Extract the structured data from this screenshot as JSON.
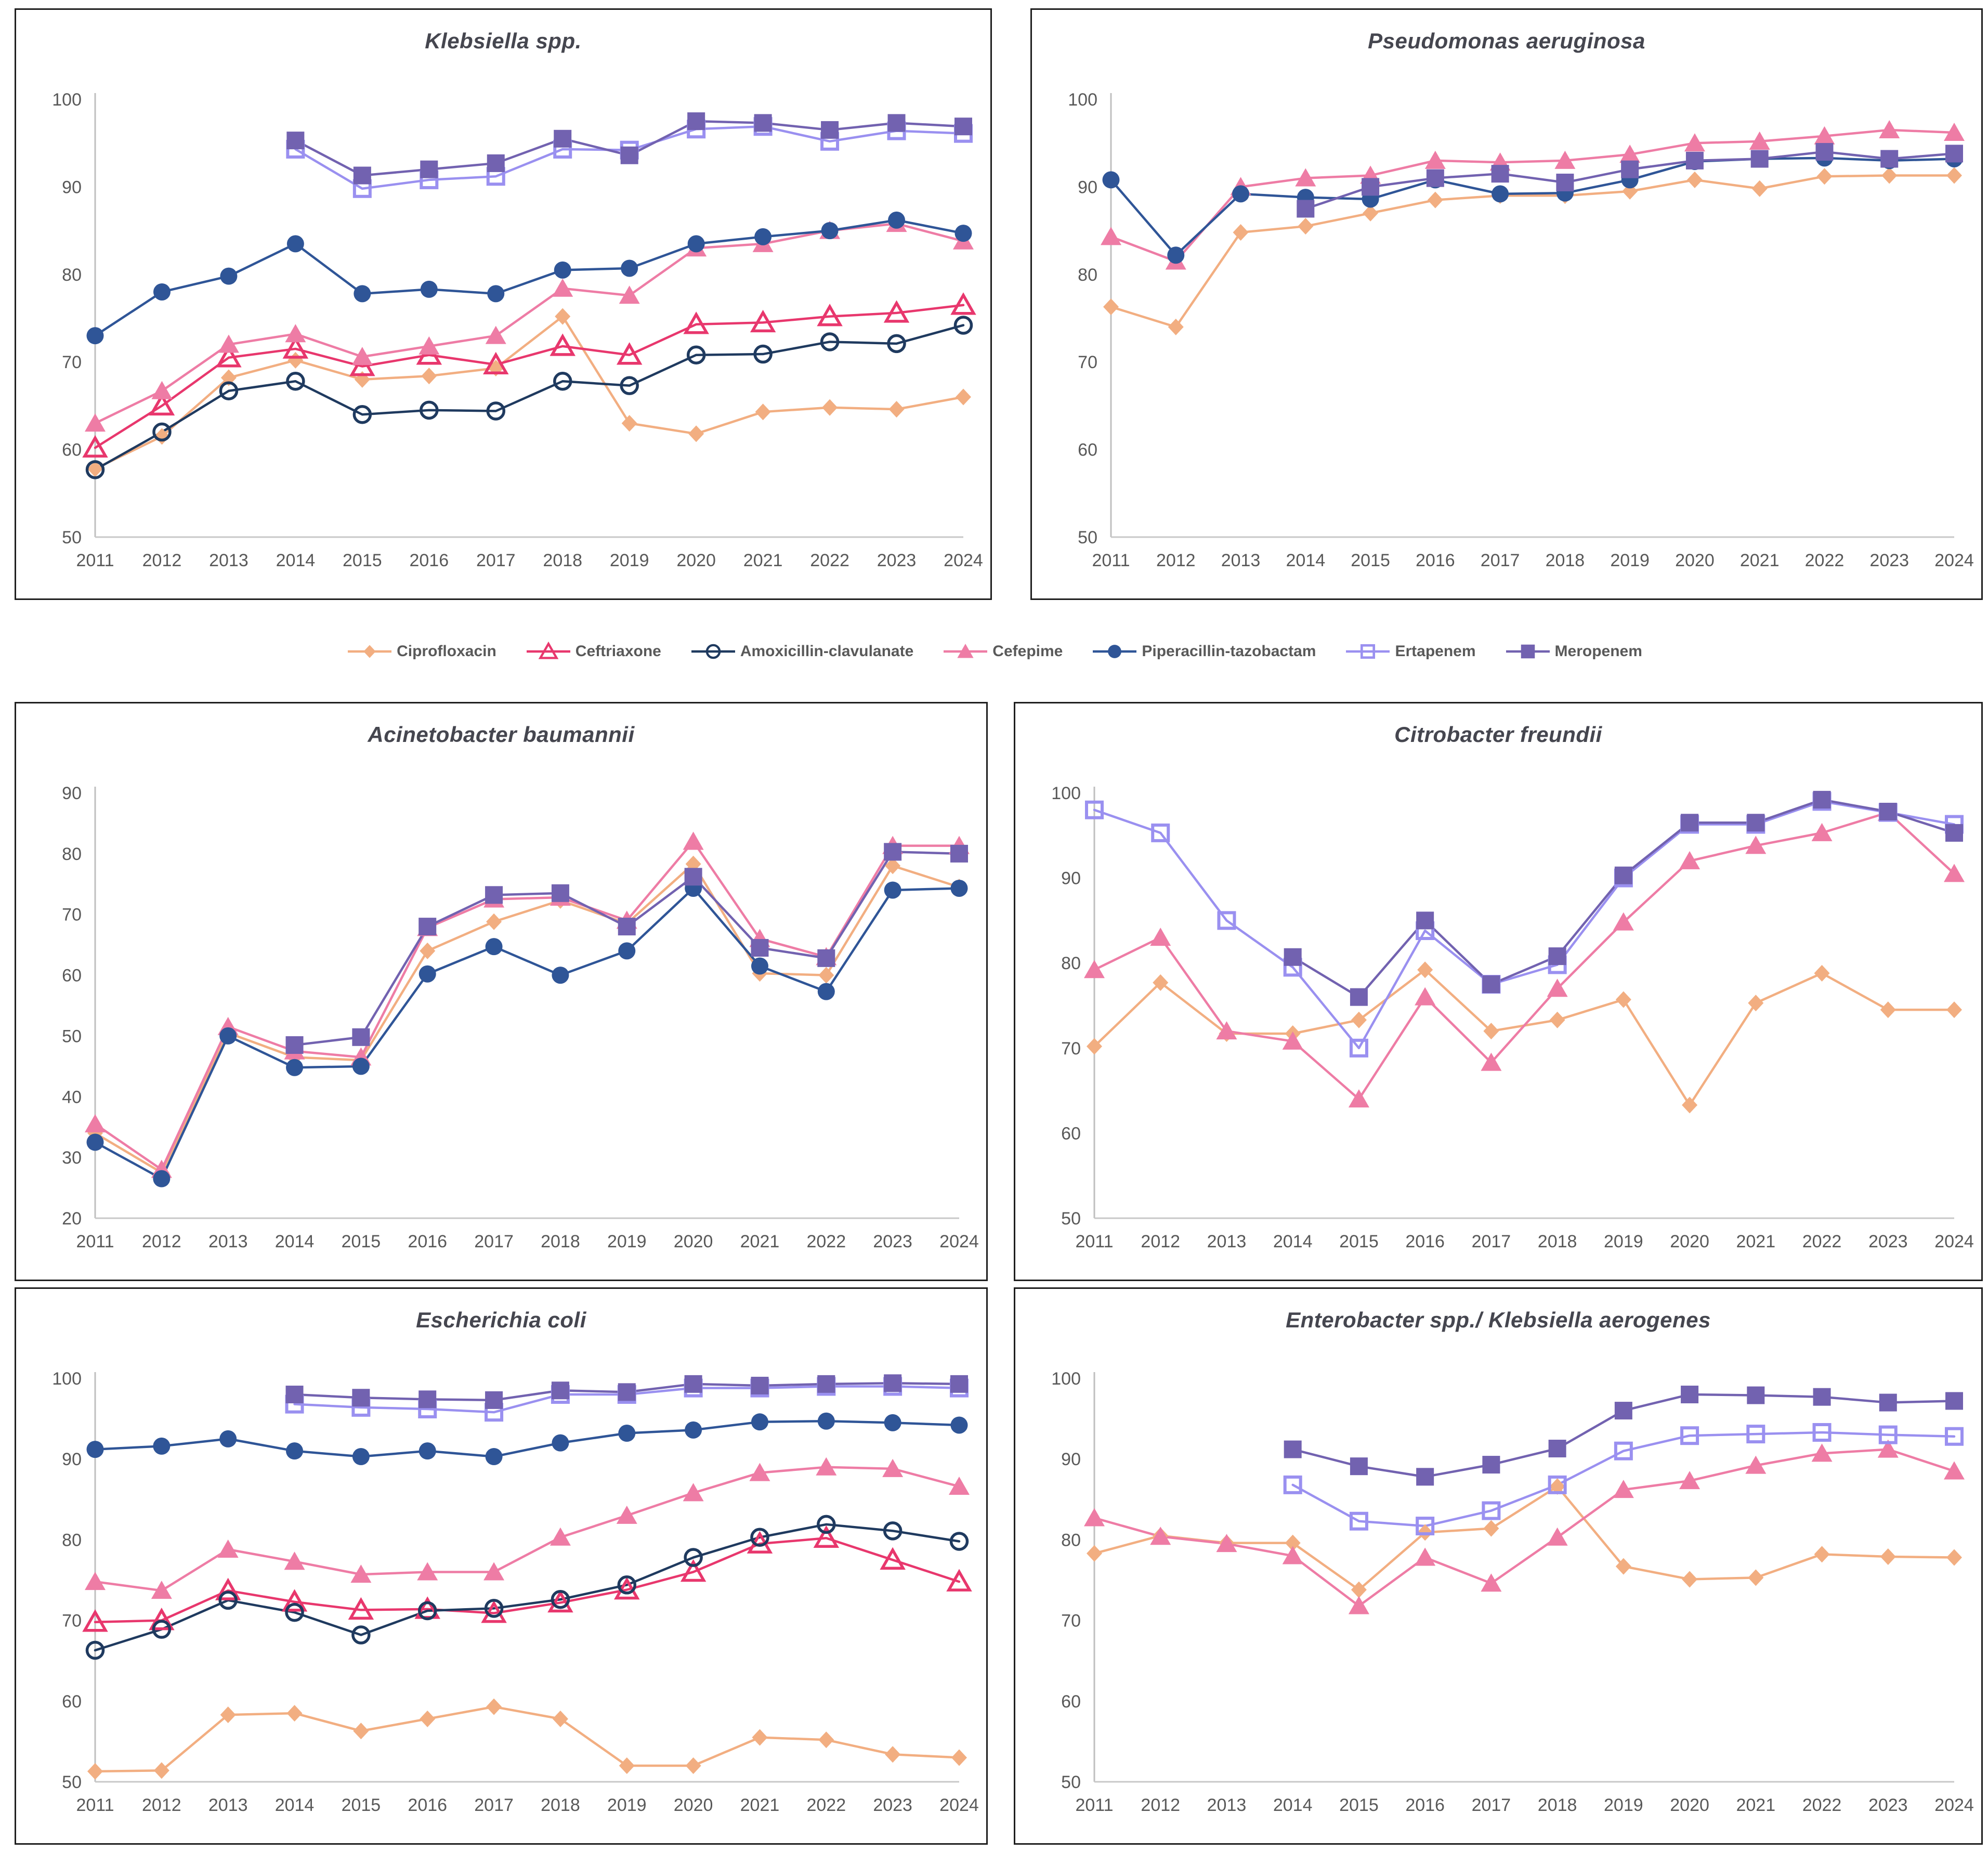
{
  "page": {
    "background": "#ffffff"
  },
  "years": [
    "2011",
    "2012",
    "2013",
    "2014",
    "2015",
    "2016",
    "2017",
    "2018",
    "2019",
    "2020",
    "2021",
    "2022",
    "2023",
    "2024"
  ],
  "series_styles": {
    "ciprofloxacin": {
      "color": "#F2AE81",
      "marker": "diamond-filled"
    },
    "ceftriaxone": {
      "color": "#E8376D",
      "marker": "triangle-open"
    },
    "amoxicillin_clavulanate": {
      "color": "#1F3A5F",
      "marker": "circle-open"
    },
    "cefepime": {
      "color": "#EE7CA5",
      "marker": "triangle-filled"
    },
    "piperacillin_tazobactam": {
      "color": "#2F5597",
      "marker": "circle-filled"
    },
    "ertapenem": {
      "color": "#9A90F0",
      "marker": "square-open"
    },
    "meropenem": {
      "color": "#7262B0",
      "marker": "square-filled"
    }
  },
  "legend": {
    "items": [
      {
        "key": "ciprofloxacin",
        "label": "Ciprofloxacin"
      },
      {
        "key": "ceftriaxone",
        "label": "Ceftriaxone"
      },
      {
        "key": "amoxicillin_clavulanate",
        "label": "Amoxicillin-clavulanate"
      },
      {
        "key": "cefepime",
        "label": "Cefepime"
      },
      {
        "key": "piperacillin_tazobactam",
        "label": "Piperacillin-tazobactam"
      },
      {
        "key": "ertapenem",
        "label": "Ertapenem"
      },
      {
        "key": "meropenem",
        "label": "Meropenem"
      }
    ]
  },
  "chart_data": [
    {
      "id": "klebsiella",
      "type": "line",
      "title": "Klebsiella spp.",
      "ylim": [
        50,
        100
      ],
      "yticks": [
        50,
        60,
        70,
        80,
        90,
        100
      ],
      "grid": false,
      "series": [
        {
          "key": "ciprofloxacin",
          "name": "Ciprofloxacin",
          "values": [
            57.8,
            61.5,
            68.2,
            70.2,
            68,
            68.4,
            69.3,
            75.2,
            63,
            61.8,
            64.3,
            64.8,
            64.6,
            66
          ]
        },
        {
          "key": "ceftriaxone",
          "name": "Ceftriaxone",
          "values": [
            60.2,
            65,
            70.5,
            71.5,
            69.5,
            70.8,
            69.7,
            71.8,
            70.8,
            74.3,
            74.5,
            75.2,
            75.6,
            76.5
          ]
        },
        {
          "key": "amoxicillin_clavulanate",
          "name": "Amoxicillin-clavulanate",
          "values": [
            57.7,
            62,
            66.7,
            67.8,
            64,
            64.5,
            64.4,
            67.8,
            67.3,
            70.8,
            70.9,
            72.3,
            72.1,
            74.2
          ]
        },
        {
          "key": "cefepime",
          "name": "Cefepime",
          "values": [
            63,
            66.7,
            72,
            73.2,
            70.6,
            71.8,
            73,
            78.4,
            77.6,
            83,
            83.5,
            85,
            85.8,
            83.8
          ]
        },
        {
          "key": "piperacillin_tazobactam",
          "name": "Piperacillin-tazobactam",
          "values": [
            73,
            78,
            79.8,
            83.5,
            77.8,
            78.3,
            77.8,
            80.5,
            80.7,
            83.5,
            84.3,
            85,
            86.2,
            84.7
          ]
        },
        {
          "key": "ertapenem",
          "name": "Ertapenem",
          "values": [
            null,
            null,
            null,
            94.3,
            89.8,
            90.8,
            91.2,
            94.3,
            94.2,
            96.6,
            96.9,
            95.2,
            96.4,
            96.1
          ]
        },
        {
          "key": "meropenem",
          "name": "Meropenem",
          "values": [
            null,
            null,
            null,
            95.3,
            91.3,
            92,
            92.7,
            95.5,
            93.6,
            97.5,
            97.3,
            96.5,
            97.3,
            96.9
          ]
        }
      ]
    },
    {
      "id": "pseudomonas",
      "type": "line",
      "title": "Pseudomonas aeruginosa",
      "ylim": [
        50,
        100
      ],
      "yticks": [
        50,
        60,
        70,
        80,
        90,
        100
      ],
      "grid": false,
      "series": [
        {
          "key": "ciprofloxacin",
          "name": "Ciprofloxacin",
          "values": [
            76.3,
            74,
            84.8,
            85.5,
            87,
            88.5,
            89,
            89,
            89.5,
            90.8,
            89.8,
            91.2,
            91.3,
            91.3
          ]
        },
        {
          "key": "cefepime",
          "name": "Cefepime",
          "values": [
            84.3,
            81.5,
            90,
            91,
            91.3,
            93,
            92.8,
            93,
            93.7,
            95,
            95.2,
            95.8,
            96.5,
            96.2
          ]
        },
        {
          "key": "piperacillin_tazobactam",
          "name": "Piperacillin-tazobactam",
          "values": [
            90.8,
            82.2,
            89.2,
            88.8,
            88.6,
            90.8,
            89.2,
            89.3,
            90.8,
            92.9,
            93.2,
            93.3,
            93,
            93.2
          ]
        },
        {
          "key": "meropenem",
          "name": "Meropenem",
          "values": [
            null,
            null,
            null,
            87.5,
            90,
            91,
            91.5,
            90.5,
            92,
            93,
            93.2,
            94,
            93.2,
            93.8
          ]
        }
      ]
    },
    {
      "id": "acinetobacter",
      "type": "line",
      "title": "Acinetobacter baumannii",
      "ylim": [
        20,
        90
      ],
      "yticks": [
        20,
        30,
        40,
        50,
        60,
        70,
        80,
        90
      ],
      "grid": false,
      "series": [
        {
          "key": "ciprofloxacin",
          "name": "Ciprofloxacin",
          "values": [
            34,
            27.5,
            50.5,
            46.5,
            46,
            64,
            68.8,
            72.3,
            68.5,
            78.3,
            60.3,
            60,
            78,
            74.5
          ]
        },
        {
          "key": "cefepime",
          "name": "Cefepime",
          "values": [
            35.5,
            28,
            51.5,
            47.5,
            46.5,
            67.8,
            72.5,
            72.8,
            69,
            82,
            66,
            63,
            81.3,
            81.3
          ]
        },
        {
          "key": "piperacillin_tazobactam",
          "name": "Piperacillin-tazobactam",
          "values": [
            32.5,
            26.5,
            50,
            44.8,
            45,
            60.2,
            64.7,
            60,
            64,
            74.3,
            61.5,
            57.3,
            74,
            74.3
          ]
        },
        {
          "key": "meropenem",
          "name": "Meropenem",
          "values": [
            null,
            null,
            null,
            48.5,
            49.8,
            68,
            73.2,
            73.5,
            68,
            76.2,
            64.5,
            62.8,
            80.3,
            80
          ]
        }
      ]
    },
    {
      "id": "citrobacter",
      "type": "line",
      "title": "Citrobacter freundii",
      "ylim": [
        50,
        100
      ],
      "yticks": [
        50,
        60,
        70,
        80,
        90,
        100
      ],
      "grid": false,
      "series": [
        {
          "key": "ciprofloxacin",
          "name": "Ciprofloxacin",
          "values": [
            70.2,
            77.7,
            71.7,
            71.7,
            73.3,
            79.2,
            72,
            73.3,
            75.7,
            63.3,
            75.3,
            78.8,
            74.5,
            74.5
          ]
        },
        {
          "key": "cefepime",
          "name": "Cefepime",
          "values": [
            79.2,
            83,
            72,
            70.8,
            64,
            76,
            68.3,
            77,
            84.8,
            92,
            93.8,
            95.3,
            97.7,
            90.5
          ]
        },
        {
          "key": "ertapenem",
          "name": "Ertapenem",
          "values": [
            98,
            95.3,
            85,
            79.5,
            70,
            83.8,
            77.5,
            79.8,
            90,
            96.3,
            96.3,
            99,
            97.7,
            96.3
          ]
        },
        {
          "key": "meropenem",
          "name": "Meropenem",
          "values": [
            null,
            null,
            null,
            80.7,
            76,
            85,
            77.5,
            80.8,
            90.3,
            96.5,
            96.5,
            99.2,
            97.8,
            95.3
          ]
        }
      ]
    },
    {
      "id": "ecoli",
      "type": "line",
      "title": "Escherichia coli",
      "ylim": [
        50,
        100
      ],
      "yticks": [
        50,
        60,
        70,
        80,
        90,
        100
      ],
      "grid": false,
      "series": [
        {
          "key": "ciprofloxacin",
          "name": "Ciprofloxacin",
          "values": [
            51.3,
            51.4,
            58.3,
            58.5,
            56.3,
            57.8,
            59.3,
            57.8,
            52,
            52,
            55.5,
            55.2,
            53.4,
            53
          ]
        },
        {
          "key": "ceftriaxone",
          "name": "Ceftriaxone",
          "values": [
            69.8,
            70,
            73.7,
            72.3,
            71.3,
            71.4,
            70.9,
            72.2,
            73.8,
            76,
            79.5,
            80.2,
            77.5,
            74.8
          ]
        },
        {
          "key": "amoxicillin_clavulanate",
          "name": "Amoxicillin-clavulanate",
          "values": [
            66.3,
            68.9,
            72.5,
            71,
            68.2,
            71.2,
            71.5,
            72.6,
            74.4,
            77.8,
            80.3,
            81.9,
            81.1,
            79.8
          ]
        },
        {
          "key": "cefepime",
          "name": "Cefepime",
          "values": [
            74.8,
            73.7,
            78.8,
            77.3,
            75.7,
            76,
            76,
            80.3,
            83,
            85.8,
            88.3,
            89,
            88.8,
            86.6
          ]
        },
        {
          "key": "piperacillin_tazobactam",
          "name": "Piperacillin-tazobactam",
          "values": [
            91.2,
            91.6,
            92.5,
            91,
            90.3,
            91,
            90.3,
            92,
            93.2,
            93.6,
            94.6,
            94.7,
            94.5,
            94.2
          ]
        },
        {
          "key": "ertapenem",
          "name": "Ertapenem",
          "values": [
            null,
            null,
            null,
            96.8,
            96.4,
            96.2,
            95.8,
            98,
            98,
            98.8,
            98.8,
            99,
            99,
            98.8
          ]
        },
        {
          "key": "meropenem",
          "name": "Meropenem",
          "values": [
            null,
            null,
            null,
            98,
            97.6,
            97.4,
            97.3,
            98.5,
            98.3,
            99.3,
            99.1,
            99.3,
            99.4,
            99.3
          ]
        }
      ]
    },
    {
      "id": "enterobacter",
      "type": "line",
      "title": "Enterobacter spp./ Klebsiella aerogenes",
      "ylim": [
        50,
        100
      ],
      "yticks": [
        50,
        60,
        70,
        80,
        90,
        100
      ],
      "grid": false,
      "series": [
        {
          "key": "ciprofloxacin",
          "name": "Ciprofloxacin",
          "values": [
            78.3,
            80.5,
            79.6,
            79.6,
            73.8,
            80.9,
            81.4,
            86.6,
            76.7,
            75.1,
            75.3,
            78.2,
            77.9,
            77.8
          ]
        },
        {
          "key": "cefepime",
          "name": "Cefepime",
          "values": [
            82.7,
            80.4,
            79.5,
            78,
            71.8,
            77.8,
            74.6,
            80.3,
            86.2,
            87.3,
            89.2,
            90.7,
            91.2,
            88.5
          ]
        },
        {
          "key": "ertapenem",
          "name": "Ertapenem",
          "values": [
            null,
            null,
            null,
            86.8,
            82.3,
            81.7,
            83.6,
            86.8,
            91,
            92.9,
            93.1,
            93.3,
            93,
            92.8
          ]
        },
        {
          "key": "meropenem",
          "name": "Meropenem",
          "values": [
            null,
            null,
            null,
            91.2,
            89.1,
            87.8,
            89.3,
            91.3,
            96,
            98,
            97.9,
            97.7,
            97,
            97.2
          ]
        }
      ]
    }
  ]
}
